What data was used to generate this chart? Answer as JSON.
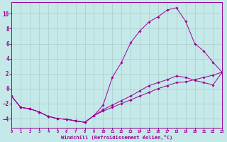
{
  "xlabel": "Windchill (Refroidissement éolien,°C)",
  "bg_color": "#c5e8e8",
  "grid_color": "#aacccc",
  "line_color": "#990099",
  "xlim": [
    0,
    23
  ],
  "ylim": [
    -5.2,
    11.5
  ],
  "xticks": [
    0,
    1,
    2,
    3,
    4,
    5,
    6,
    7,
    8,
    9,
    10,
    11,
    12,
    13,
    14,
    15,
    16,
    17,
    18,
    19,
    20,
    21,
    22,
    23
  ],
  "yticks": [
    -4,
    -2,
    0,
    2,
    4,
    6,
    8,
    10
  ],
  "curve1_x": [
    0,
    1,
    2,
    3,
    4,
    5,
    6,
    7,
    8,
    9,
    10,
    11,
    12,
    13,
    14,
    15,
    16,
    17,
    18,
    19,
    20,
    21,
    22,
    23
  ],
  "curve1_y": [
    -1.0,
    -2.5,
    -2.7,
    -3.1,
    -3.7,
    -4.0,
    -4.1,
    -4.3,
    -4.5,
    -3.6,
    -2.2,
    1.5,
    3.5,
    6.1,
    7.7,
    8.9,
    9.6,
    10.5,
    10.8,
    9.0,
    6.0,
    5.0,
    3.5,
    2.2
  ],
  "curve2_x": [
    0,
    1,
    2,
    3,
    4,
    5,
    6,
    7,
    8,
    9,
    10,
    11,
    12,
    13,
    14,
    15,
    16,
    17,
    18,
    19,
    20,
    21,
    22,
    23
  ],
  "curve2_y": [
    -1.0,
    -2.5,
    -2.7,
    -3.1,
    -3.7,
    -4.0,
    -4.1,
    -4.3,
    -4.5,
    -3.6,
    -2.8,
    -2.2,
    -1.6,
    -1.0,
    -0.3,
    0.4,
    0.8,
    1.2,
    1.7,
    1.5,
    1.1,
    0.8,
    0.5,
    2.2
  ],
  "curve3_x": [
    0,
    1,
    2,
    3,
    4,
    5,
    6,
    7,
    8,
    9,
    10,
    11,
    12,
    13,
    14,
    15,
    16,
    17,
    18,
    19,
    20,
    21,
    22,
    23
  ],
  "curve3_y": [
    -1.0,
    -2.5,
    -2.7,
    -3.1,
    -3.7,
    -4.0,
    -4.1,
    -4.3,
    -4.5,
    -3.6,
    -3.0,
    -2.5,
    -2.0,
    -1.5,
    -1.0,
    -0.5,
    0.0,
    0.4,
    0.8,
    0.9,
    1.2,
    1.5,
    1.8,
    2.2
  ]
}
